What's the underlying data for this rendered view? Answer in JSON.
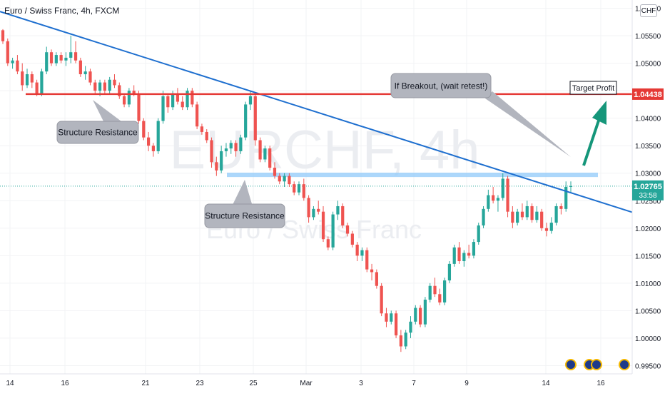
{
  "header": {
    "symbol_title": "Euro / Swiss Franc, 4h, FXCM",
    "currency": "CHF"
  },
  "watermark": {
    "ticker": "EURCHF, 4h",
    "name": "Euro / Swiss Franc"
  },
  "annotations": {
    "structure_resistance_1": "Structure Resistance",
    "structure_resistance_2": "Structure Resistance",
    "breakout_note": "If Breakout, (wait retest!)",
    "target_profit": "Target Profit"
  },
  "price_labels": {
    "resistance_level": "1.04438",
    "last_price": "1.02765",
    "countdown": "33:58"
  },
  "colors": {
    "up": "#26a69a",
    "down": "#ef5350",
    "trendline": "#1e6fcf",
    "resistance_line": "#e53935",
    "support_zone": "#90caf9",
    "arrow": "#15967a",
    "last_price_line": "#26a69a"
  },
  "event_icons": [
    "event-icon",
    "event-icon",
    "event-icon",
    "event-icon"
  ],
  "chart_data": {
    "type": "candlestick",
    "y_ticks": [
      "1.06000",
      "1.05500",
      "1.05000",
      "1.04500",
      "1.04000",
      "1.03500",
      "1.03000",
      "1.02500",
      "1.02000",
      "1.01500",
      "1.01000",
      "1.00500",
      "1.00000",
      "0.99500"
    ],
    "x_ticks": [
      "14",
      "16",
      "21",
      "23",
      "25",
      "Mar",
      "3",
      "7",
      "9",
      "14",
      "16"
    ],
    "ylim": [
      0.9935,
      1.0615
    ],
    "horizontal_resistance": 1.04438,
    "support_zone": [
      1.0293,
      1.0301
    ],
    "trendline": {
      "start_price": 1.0594,
      "end_price": 1.0229
    },
    "last_price": 1.02765,
    "ohlc": [
      [
        1.056,
        1.0562,
        1.0535,
        1.054
      ],
      [
        1.054,
        1.0545,
        1.0495,
        1.05
      ],
      [
        1.05,
        1.051,
        1.049,
        1.0505
      ],
      [
        1.0505,
        1.0515,
        1.048,
        1.0485
      ],
      [
        1.0485,
        1.05,
        1.045,
        1.046
      ],
      [
        1.046,
        1.049,
        1.0455,
        1.048
      ],
      [
        1.048,
        1.0485,
        1.0455,
        1.0465
      ],
      [
        1.0465,
        1.047,
        1.044,
        1.0445
      ],
      [
        1.0445,
        1.049,
        1.044,
        1.0485
      ],
      [
        1.0485,
        1.053,
        1.048,
        1.052
      ],
      [
        1.052,
        1.0525,
        1.0495,
        1.05
      ],
      [
        1.05,
        1.052,
        1.0495,
        1.0515
      ],
      [
        1.0515,
        1.052,
        1.05,
        1.0505
      ],
      [
        1.0505,
        1.052,
        1.0495,
        1.051
      ],
      [
        1.051,
        1.055,
        1.05,
        1.052
      ],
      [
        1.052,
        1.054,
        1.05,
        1.0505
      ],
      [
        1.0505,
        1.051,
        1.0475,
        1.048
      ],
      [
        1.048,
        1.0495,
        1.047,
        1.0485
      ],
      [
        1.0485,
        1.049,
        1.046,
        1.0465
      ],
      [
        1.0465,
        1.047,
        1.0445,
        1.045
      ],
      [
        1.045,
        1.047,
        1.044,
        1.0465
      ],
      [
        1.0465,
        1.047,
        1.0445,
        1.045
      ],
      [
        1.045,
        1.0475,
        1.0445,
        1.047
      ],
      [
        1.047,
        1.048,
        1.0455,
        1.046
      ],
      [
        1.046,
        1.0465,
        1.0435,
        1.044
      ],
      [
        1.044,
        1.0445,
        1.042,
        1.0425
      ],
      [
        1.0425,
        1.0455,
        1.042,
        1.045
      ],
      [
        1.045,
        1.046,
        1.044,
        1.0445
      ],
      [
        1.0445,
        1.045,
        1.039,
        1.0395
      ],
      [
        1.0395,
        1.04,
        1.036,
        1.0365
      ],
      [
        1.0365,
        1.0375,
        1.034,
        1.035
      ],
      [
        1.035,
        1.0355,
        1.033,
        1.034
      ],
      [
        1.034,
        1.04,
        1.0335,
        1.0395
      ],
      [
        1.0395,
        1.045,
        1.039,
        1.044
      ],
      [
        1.044,
        1.0445,
        1.041,
        1.042
      ],
      [
        1.042,
        1.045,
        1.0415,
        1.0445
      ],
      [
        1.0445,
        1.0455,
        1.0425,
        1.043
      ],
      [
        1.043,
        1.044,
        1.0415,
        1.042
      ],
      [
        1.042,
        1.0455,
        1.0415,
        1.045
      ],
      [
        1.045,
        1.0455,
        1.042,
        1.0425
      ],
      [
        1.0425,
        1.043,
        1.038,
        1.0385
      ],
      [
        1.0385,
        1.039,
        1.037,
        1.0375
      ],
      [
        1.0375,
        1.038,
        1.0355,
        1.036
      ],
      [
        1.036,
        1.0365,
        1.031,
        1.032
      ],
      [
        1.032,
        1.033,
        1.0295,
        1.0305
      ],
      [
        1.0305,
        1.035,
        1.03,
        1.034
      ],
      [
        1.034,
        1.0355,
        1.033,
        1.0345
      ],
      [
        1.0345,
        1.036,
        1.0335,
        1.0355
      ],
      [
        1.0355,
        1.036,
        1.033,
        1.034
      ],
      [
        1.034,
        1.037,
        1.0335,
        1.0365
      ],
      [
        1.0365,
        1.043,
        1.036,
        1.0425
      ],
      [
        1.0425,
        1.045,
        1.0415,
        1.044
      ],
      [
        1.044,
        1.0445,
        1.035,
        1.036
      ],
      [
        1.036,
        1.0365,
        1.032,
        1.0325
      ],
      [
        1.0325,
        1.035,
        1.032,
        1.0345
      ],
      [
        1.0345,
        1.035,
        1.0305,
        1.031
      ],
      [
        1.031,
        1.032,
        1.029,
        1.0295
      ],
      [
        1.0295,
        1.03,
        1.028,
        1.0285
      ],
      [
        1.0285,
        1.03,
        1.0275,
        1.0295
      ],
      [
        1.0295,
        1.03,
        1.0275,
        1.028
      ],
      [
        1.028,
        1.0285,
        1.026,
        1.0265
      ],
      [
        1.0265,
        1.0285,
        1.026,
        1.028
      ],
      [
        1.028,
        1.029,
        1.025,
        1.0255
      ],
      [
        1.0255,
        1.026,
        1.021,
        1.022
      ],
      [
        1.022,
        1.024,
        1.0215,
        1.0235
      ],
      [
        1.0235,
        1.025,
        1.0225,
        1.023
      ],
      [
        1.023,
        1.024,
        1.0175,
        1.018
      ],
      [
        1.018,
        1.0185,
        1.016,
        1.0165
      ],
      [
        1.0165,
        1.023,
        1.016,
        1.0225
      ],
      [
        1.0225,
        1.025,
        1.0215,
        1.024
      ],
      [
        1.024,
        1.0245,
        1.02,
        1.0205
      ],
      [
        1.0205,
        1.021,
        1.0185,
        1.019
      ],
      [
        1.019,
        1.0195,
        1.0165,
        1.017
      ],
      [
        1.017,
        1.0175,
        1.014,
        1.015
      ],
      [
        1.015,
        1.0165,
        1.014,
        1.016
      ],
      [
        1.016,
        1.0165,
        1.012,
        1.0125
      ],
      [
        1.0125,
        1.0135,
        1.0105,
        1.012
      ],
      [
        1.012,
        1.0125,
        1.009,
        1.0095
      ],
      [
        1.0095,
        1.01,
        1.004,
        1.0045
      ],
      [
        1.0045,
        1.0055,
        1.002,
        1.003
      ],
      [
        1.003,
        1.005,
        1.0025,
        1.0045
      ],
      [
        1.0045,
        1.005,
        1.0,
        1.0005
      ],
      [
        1.0005,
        1.0015,
        0.9975,
        0.9985
      ],
      [
        0.9985,
        1.0015,
        0.998,
        1.001
      ],
      [
        1.001,
        1.004,
        1.0,
        1.003
      ],
      [
        1.003,
        1.006,
        1.0025,
        1.0055
      ],
      [
        1.0055,
        1.006,
        1.002,
        1.0025
      ],
      [
        1.0025,
        1.0075,
        1.002,
        1.007
      ],
      [
        1.007,
        1.01,
        1.0065,
        1.0095
      ],
      [
        1.0095,
        1.011,
        1.0075,
        1.008
      ],
      [
        1.008,
        1.009,
        1.006,
        1.0065
      ],
      [
        1.0065,
        1.011,
        1.006,
        1.0105
      ],
      [
        1.0105,
        1.014,
        1.01,
        1.0135
      ],
      [
        1.0135,
        1.017,
        1.013,
        1.0165
      ],
      [
        1.0165,
        1.0175,
        1.0135,
        1.014
      ],
      [
        1.014,
        1.016,
        1.013,
        1.0155
      ],
      [
        1.0155,
        1.017,
        1.0145,
        1.015
      ],
      [
        1.015,
        1.018,
        1.0145,
        1.0175
      ],
      [
        1.0175,
        1.021,
        1.017,
        1.0205
      ],
      [
        1.0205,
        1.024,
        1.02,
        1.0235
      ],
      [
        1.0235,
        1.027,
        1.023,
        1.026
      ],
      [
        1.026,
        1.0275,
        1.0245,
        1.025
      ],
      [
        1.025,
        1.026,
        1.023,
        1.0255
      ],
      [
        1.0255,
        1.03,
        1.025,
        1.029
      ],
      [
        1.029,
        1.0295,
        1.022,
        1.023
      ],
      [
        1.023,
        1.024,
        1.02,
        1.021
      ],
      [
        1.021,
        1.0235,
        1.0205,
        1.023
      ],
      [
        1.023,
        1.0245,
        1.0215,
        1.022
      ],
      [
        1.022,
        1.025,
        1.0215,
        1.024
      ],
      [
        1.024,
        1.0245,
        1.021,
        1.0215
      ],
      [
        1.0215,
        1.024,
        1.021,
        1.023
      ],
      [
        1.023,
        1.0235,
        1.0195,
        1.02
      ],
      [
        1.02,
        1.021,
        1.0185,
        1.0195
      ],
      [
        1.0195,
        1.022,
        1.019,
        1.021
      ],
      [
        1.021,
        1.0245,
        1.0205,
        1.024
      ],
      [
        1.024,
        1.0245,
        1.0225,
        1.0235
      ],
      [
        1.0235,
        1.0285,
        1.023,
        1.0275
      ],
      [
        1.0275,
        1.0285,
        1.0265,
        1.02765
      ]
    ]
  }
}
